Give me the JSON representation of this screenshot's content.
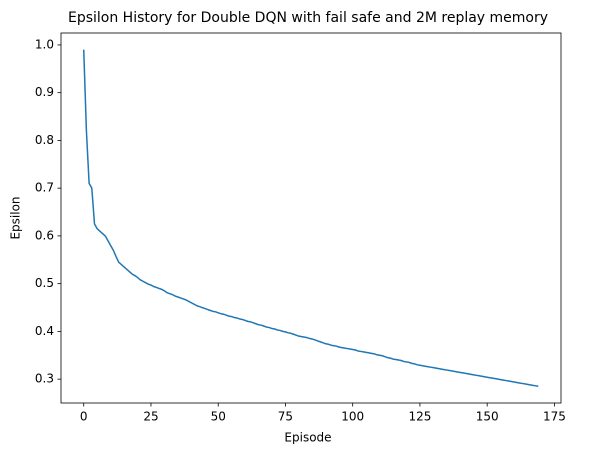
{
  "chart_data": {
    "type": "line",
    "title": "Epsilon History for Double DQN with fail safe and 2M replay memory",
    "x_label": "Episode",
    "y_label": "Epsilon",
    "color": "#1f77b4",
    "x": [
      0,
      1,
      2,
      3,
      4,
      5,
      6,
      7,
      8,
      9,
      10,
      11,
      12,
      13,
      14,
      15,
      16,
      17,
      18,
      19,
      20,
      21,
      22,
      23,
      24,
      25,
      26,
      27,
      28,
      29,
      30,
      31,
      32,
      33,
      34,
      35,
      36,
      37,
      38,
      39,
      40,
      41,
      42,
      43,
      44,
      45,
      46,
      47,
      48,
      49,
      50,
      51,
      52,
      53,
      54,
      55,
      56,
      57,
      58,
      59,
      60,
      61,
      62,
      63,
      64,
      65,
      66,
      67,
      68,
      69,
      70,
      71,
      72,
      73,
      74,
      75,
      76,
      77,
      78,
      79,
      80,
      81,
      82,
      83,
      84,
      85,
      86,
      87,
      88,
      89,
      90,
      91,
      92,
      93,
      94,
      95,
      96,
      97,
      98,
      99,
      100,
      101,
      102,
      103,
      104,
      105,
      106,
      107,
      108,
      109,
      110,
      111,
      112,
      113,
      114,
      115,
      116,
      117,
      118,
      119,
      120,
      121,
      122,
      123,
      124,
      125,
      126,
      127,
      128,
      129,
      130,
      131,
      132,
      133,
      134,
      135,
      136,
      137,
      138,
      139,
      140,
      141,
      142,
      143,
      144,
      145,
      146,
      147,
      148,
      149,
      150,
      151,
      152,
      153,
      154,
      155,
      156,
      157,
      158,
      159,
      160,
      161,
      162,
      163,
      164,
      165,
      166,
      167,
      168,
      169
    ],
    "values": [
      0.99,
      0.82,
      0.71,
      0.7,
      0.625,
      0.615,
      0.61,
      0.605,
      0.6,
      0.59,
      0.58,
      0.57,
      0.557,
      0.545,
      0.54,
      0.535,
      0.53,
      0.525,
      0.52,
      0.517,
      0.513,
      0.508,
      0.505,
      0.502,
      0.499,
      0.497,
      0.494,
      0.492,
      0.49,
      0.488,
      0.485,
      0.481,
      0.479,
      0.477,
      0.474,
      0.472,
      0.47,
      0.468,
      0.466,
      0.463,
      0.46,
      0.457,
      0.454,
      0.452,
      0.45,
      0.448,
      0.446,
      0.444,
      0.442,
      0.441,
      0.439,
      0.437,
      0.436,
      0.434,
      0.432,
      0.431,
      0.429,
      0.428,
      0.426,
      0.425,
      0.423,
      0.421,
      0.42,
      0.418,
      0.416,
      0.414,
      0.413,
      0.411,
      0.409,
      0.408,
      0.406,
      0.405,
      0.403,
      0.402,
      0.4,
      0.399,
      0.397,
      0.396,
      0.394,
      0.392,
      0.39,
      0.389,
      0.388,
      0.387,
      0.385,
      0.384,
      0.382,
      0.38,
      0.378,
      0.376,
      0.374,
      0.373,
      0.371,
      0.37,
      0.369,
      0.367,
      0.366,
      0.365,
      0.364,
      0.363,
      0.362,
      0.361,
      0.359,
      0.358,
      0.357,
      0.356,
      0.355,
      0.354,
      0.353,
      0.351,
      0.35,
      0.349,
      0.347,
      0.345,
      0.344,
      0.342,
      0.341,
      0.34,
      0.339,
      0.337,
      0.336,
      0.335,
      0.333,
      0.332,
      0.33,
      0.329,
      0.328,
      0.327,
      0.326,
      0.325,
      0.324,
      0.323,
      0.322,
      0.321,
      0.32,
      0.319,
      0.318,
      0.317,
      0.316,
      0.315,
      0.314,
      0.313,
      0.312,
      0.311,
      0.31,
      0.309,
      0.308,
      0.307,
      0.306,
      0.305,
      0.304,
      0.303,
      0.302,
      0.301,
      0.3,
      0.299,
      0.298,
      0.297,
      0.296,
      0.295,
      0.294,
      0.293,
      0.292,
      0.291,
      0.29,
      0.289,
      0.288,
      0.287,
      0.286,
      0.285
    ],
    "xlim": [
      -8.45,
      177.45
    ],
    "xticks": [
      0,
      25,
      50,
      75,
      100,
      125,
      150,
      175
    ],
    "ylim": [
      0.25,
      1.025
    ],
    "yticks": [
      0.3,
      0.4,
      0.5,
      0.6,
      0.7,
      0.8,
      0.9,
      {
        "value": 1,
        "label": "1.0"
      }
    ]
  }
}
